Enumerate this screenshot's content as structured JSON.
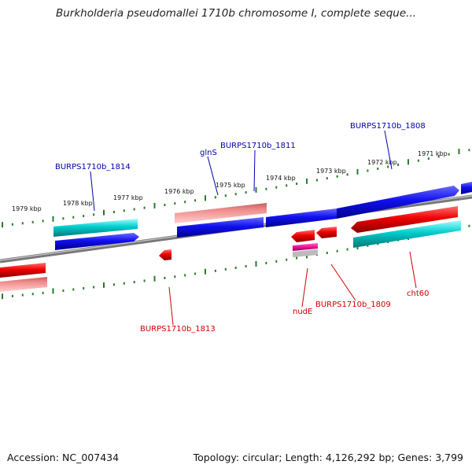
{
  "title": "Burkholderia pseudomallei 1710b chromosome I, complete seque...",
  "footer": {
    "accession": "Accession: NC_007434",
    "summary": "Topology: circular; Length: 4,126,292 bp; Genes: 3,799"
  },
  "ticks": [
    "1979 kbp",
    "1978 kbp",
    "1977 kbp",
    "1976 kbp",
    "1975 kbp",
    "1974 kbp",
    "1973 kbp",
    "1972 kbp",
    "1971 kbp"
  ],
  "labels": {
    "forward": [
      "BURPS1710b_1814",
      "glnS",
      "BURPS1710b_1811",
      "BURPS1710b_1808"
    ],
    "reverse": [
      "BURPS1710b_1813",
      "nudE",
      "BURPS1710b_1809",
      "cht60"
    ]
  },
  "colors": {
    "forward_label": "#0000aa",
    "reverse_label": "#cc0000",
    "backbone": "#888888",
    "tick": "#2a7a2a",
    "forward_gene": "#0000ee",
    "reverse_gene": "#ee0000",
    "rna_gene": "#00bbbb",
    "pseudo_gene": "#ee8888",
    "misc_feature": "#ee22aa"
  }
}
